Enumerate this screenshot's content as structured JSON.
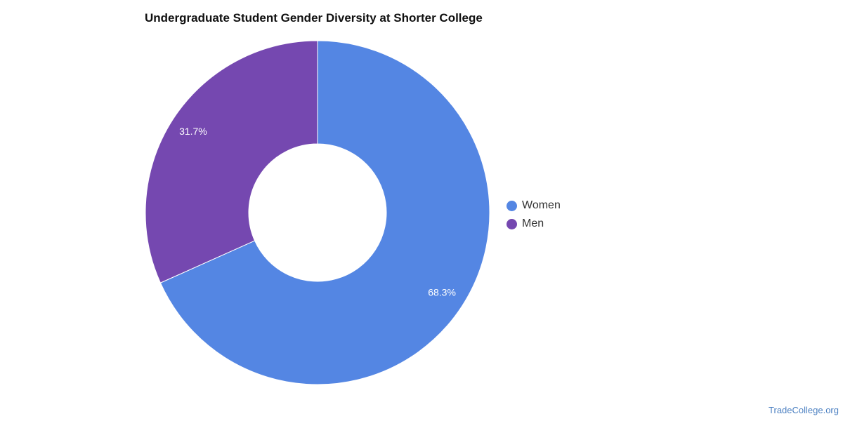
{
  "chart_data": {
    "type": "pie",
    "donut": true,
    "title": "Undergraduate Student Gender Diversity at Shorter College",
    "categories": [
      "Women",
      "Men"
    ],
    "values": [
      68.3,
      31.7
    ],
    "value_labels": [
      "68.3%",
      "31.7%"
    ],
    "colors": [
      "#5486e3",
      "#7548b0"
    ],
    "legend_position": "right"
  },
  "watermark": "TradeCollege.org"
}
